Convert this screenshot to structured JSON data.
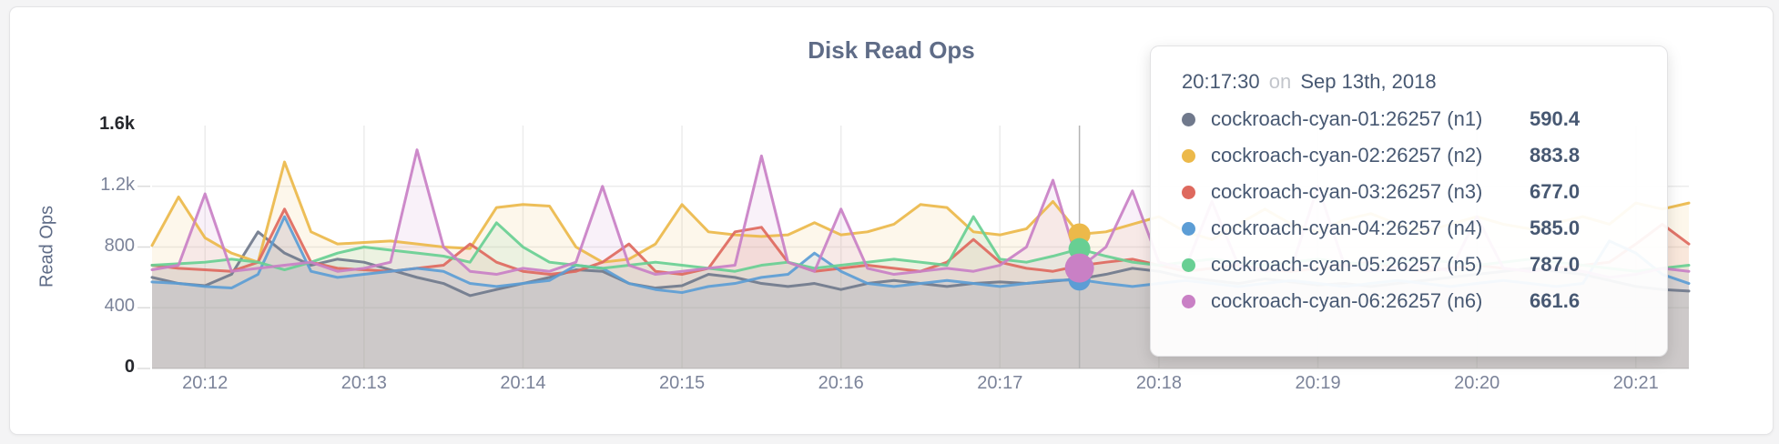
{
  "page": {
    "background": "#f4f4f5",
    "card_background": "#ffffff"
  },
  "chart": {
    "title": "Disk Read Ops",
    "y_axis": {
      "label": "Read Ops"
    }
  },
  "tooltip": {
    "time": "20:17:30",
    "on_word": "on",
    "date": "Sep 13th, 2018",
    "rows": [
      {
        "label": "cockroach-cyan-01:26257 (n1)",
        "value": "590.4"
      },
      {
        "label": "cockroach-cyan-02:26257 (n2)",
        "value": "883.8"
      },
      {
        "label": "cockroach-cyan-03:26257 (n3)",
        "value": "677.0"
      },
      {
        "label": "cockroach-cyan-04:26257 (n4)",
        "value": "585.0"
      },
      {
        "label": "cockroach-cyan-05:26257 (n5)",
        "value": "787.0"
      },
      {
        "label": "cockroach-cyan-06:26257 (n6)",
        "value": "661.6"
      }
    ]
  },
  "chart_data": {
    "type": "area",
    "title": "Disk Read Ops",
    "xlabel": "",
    "ylabel": "Read Ops",
    "ylim": [
      0,
      1600
    ],
    "grid": true,
    "legend_position": "tooltip",
    "x_start": "20:11:40",
    "x_end": "20:21:20",
    "x_step_seconds": 10,
    "x_ticks": [
      {
        "label": "20:12",
        "t": 20
      },
      {
        "label": "20:13",
        "t": 80
      },
      {
        "label": "20:14",
        "t": 140
      },
      {
        "label": "20:15",
        "t": 200
      },
      {
        "label": "20:16",
        "t": 260
      },
      {
        "label": "20:17",
        "t": 320
      },
      {
        "label": "20:18",
        "t": 380
      },
      {
        "label": "20:19",
        "t": 440
      },
      {
        "label": "20:20",
        "t": 500
      },
      {
        "label": "20:21",
        "t": 560
      }
    ],
    "y_ticks": [
      {
        "v": 0,
        "label": "0",
        "strong": true
      },
      {
        "v": 400,
        "label": "400",
        "strong": false
      },
      {
        "v": 800,
        "label": "800",
        "strong": false
      },
      {
        "v": 1200,
        "label": "1.2k",
        "strong": false
      },
      {
        "v": 1600,
        "label": "1.6k",
        "strong": true
      }
    ],
    "hover": {
      "index": 35,
      "time": "20:17:30",
      "date": "Sep 13th, 2018"
    },
    "series": [
      {
        "name": "cockroach-cyan-01:26257 (n1)",
        "short_name": "n1",
        "color": "#70798C",
        "hover_value": 590.4,
        "values": [
          600,
          560,
          545,
          620,
          900,
          760,
          680,
          720,
          700,
          650,
          600,
          560,
          480,
          520,
          560,
          600,
          650,
          640,
          560,
          530,
          545,
          620,
          600,
          560,
          540,
          560,
          520,
          560,
          580,
          560,
          540,
          560,
          570,
          560,
          575,
          590.4,
          620,
          660,
          640,
          600,
          580,
          560,
          590,
          570,
          550,
          560,
          540,
          560,
          580,
          600,
          620,
          640,
          660,
          640,
          620,
          580,
          540,
          520,
          510
        ]
      },
      {
        "name": "cockroach-cyan-02:26257 (n2)",
        "short_name": "n2",
        "color": "#ECB94A",
        "hover_value": 883.8,
        "values": [
          810,
          1130,
          860,
          760,
          700,
          1360,
          900,
          820,
          830,
          840,
          820,
          800,
          790,
          1060,
          1080,
          1070,
          800,
          700,
          720,
          820,
          1080,
          900,
          880,
          870,
          880,
          960,
          880,
          900,
          950,
          1080,
          1060,
          900,
          880,
          920,
          1100,
          883.8,
          900,
          950,
          1000,
          900,
          850,
          950,
          1050,
          950,
          900,
          980,
          1020,
          950,
          900,
          950,
          1000,
          950,
          920,
          960,
          1000,
          950,
          1090,
          1050,
          1090
        ]
      },
      {
        "name": "cockroach-cyan-03:26257 (n3)",
        "short_name": "n3",
        "color": "#DE695E",
        "hover_value": 677.0,
        "values": [
          680,
          660,
          650,
          640,
          700,
          1050,
          700,
          660,
          650,
          640,
          660,
          680,
          820,
          700,
          640,
          620,
          640,
          700,
          820,
          640,
          620,
          660,
          900,
          930,
          700,
          640,
          660,
          680,
          660,
          640,
          700,
          850,
          700,
          660,
          640,
          677.0,
          700,
          720,
          680,
          640,
          660,
          680,
          650,
          640,
          660,
          680,
          700,
          660,
          640,
          660,
          680,
          660,
          640,
          660,
          680,
          700,
          820,
          950,
          820
        ]
      },
      {
        "name": "cockroach-cyan-04:26257 (n4)",
        "short_name": "n4",
        "color": "#5C9DD5",
        "hover_value": 585.0,
        "values": [
          570,
          560,
          540,
          530,
          620,
          1000,
          640,
          600,
          620,
          640,
          660,
          640,
          560,
          540,
          560,
          580,
          680,
          660,
          560,
          520,
          500,
          540,
          560,
          600,
          620,
          760,
          640,
          560,
          540,
          560,
          580,
          560,
          540,
          560,
          580,
          585.0,
          560,
          540,
          560,
          580,
          560,
          540,
          560,
          580,
          560,
          540,
          560,
          580,
          560,
          540,
          560,
          580,
          560,
          540,
          560,
          840,
          760,
          620,
          560
        ]
      },
      {
        "name": "cockroach-cyan-05:26257 (n5)",
        "short_name": "n5",
        "color": "#68CF93",
        "hover_value": 787.0,
        "values": [
          680,
          690,
          700,
          720,
          700,
          650,
          700,
          760,
          800,
          780,
          760,
          740,
          700,
          960,
          800,
          700,
          680,
          660,
          680,
          700,
          680,
          660,
          640,
          680,
          700,
          660,
          680,
          700,
          720,
          700,
          680,
          1000,
          720,
          700,
          740,
          787.0,
          740,
          700,
          680,
          700,
          720,
          700,
          680,
          700,
          720,
          700,
          680,
          700,
          720,
          700,
          680,
          700,
          720,
          700,
          680,
          660,
          640,
          660,
          680
        ]
      },
      {
        "name": "cockroach-cyan-06:26257 (n6)",
        "short_name": "n6",
        "color": "#C980C5",
        "hover_value": 661.6,
        "values": [
          650,
          680,
          1150,
          640,
          660,
          680,
          700,
          640,
          660,
          700,
          1440,
          800,
          640,
          620,
          660,
          640,
          700,
          1200,
          680,
          620,
          640,
          660,
          680,
          1400,
          700,
          640,
          1050,
          660,
          620,
          640,
          660,
          640,
          680,
          800,
          1240,
          661.6,
          800,
          1170,
          700,
          660,
          1100,
          680,
          640,
          660,
          1200,
          680,
          640,
          660,
          680,
          640,
          1000,
          660,
          640,
          660,
          640,
          600,
          620,
          660,
          640
        ]
      }
    ]
  }
}
